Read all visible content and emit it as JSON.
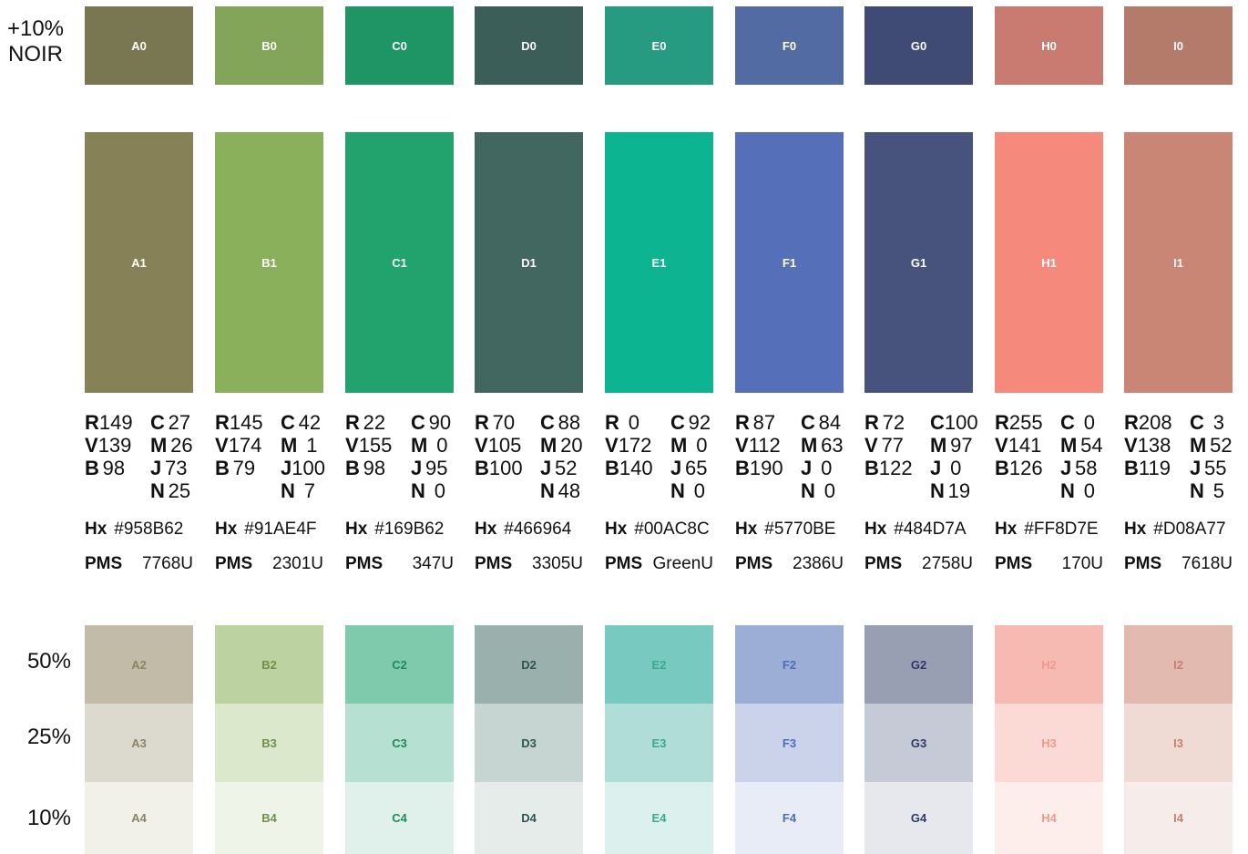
{
  "row_labels": {
    "noir_line1": "+10%",
    "noir_line2": "NOIR",
    "tint50": "50%",
    "tint25": "25%",
    "tint10": "10%"
  },
  "spec_keys": {
    "r": "R",
    "v": "V",
    "b": "B",
    "c": "C",
    "m": "M",
    "j": "J",
    "n": "N",
    "hx": "Hx",
    "pms": "PMS"
  },
  "columns": [
    {
      "labels": [
        "A0",
        "A1",
        "A2",
        "A3",
        "A4"
      ],
      "colors": [
        "#797752",
        "#878158",
        "#c2bba7",
        "#dcdacf",
        "#f1f0e9"
      ],
      "tint_text": "#8a8463",
      "rgb": {
        "r": "149",
        "v": "139",
        "b": "98"
      },
      "cmjn": {
        "c": "27",
        "m": "26",
        "j": "73",
        "n": "25"
      },
      "hex": "#958B62",
      "pms": "7768U"
    },
    {
      "labels": [
        "B0",
        "B1",
        "B2",
        "B3",
        "B4"
      ],
      "colors": [
        "#82a559",
        "#8bb05c",
        "#bcd2a0",
        "#dce8cb",
        "#eef4e7"
      ],
      "tint_text": "#6f8f49",
      "rgb": {
        "r": "145",
        "v": "174",
        "b": "79"
      },
      "cmjn": {
        "c": "42",
        "m": "1",
        "j": "100",
        "n": "7"
      },
      "hex": "#91AE4F",
      "pms": "2301U"
    },
    {
      "labels": [
        "C0",
        "C1",
        "C2",
        "C3",
        "C4"
      ],
      "colors": [
        "#1f9464",
        "#22a26d",
        "#7fcaad",
        "#b6e0d2",
        "#dff1ea"
      ],
      "tint_text": "#1f8a5c",
      "rgb": {
        "r": "22",
        "v": "155",
        "b": "98"
      },
      "cmjn": {
        "c": "90",
        "m": "0",
        "j": "95",
        "n": "0"
      },
      "hex": "#169B62",
      "pms": "347U"
    },
    {
      "labels": [
        "D0",
        "D1",
        "D2",
        "D3",
        "D4"
      ],
      "colors": [
        "#3b5e59",
        "#426761",
        "#99b0ac",
        "#c6d5d2",
        "#e6ecea"
      ],
      "tint_text": "#2f554f",
      "rgb": {
        "r": "70",
        "v": "105",
        "b": "100"
      },
      "cmjn": {
        "c": "88",
        "m": "20",
        "j": "52",
        "n": "48"
      },
      "hex": "#466964",
      "pms": "3305U"
    },
    {
      "labels": [
        "E0",
        "E1",
        "E2",
        "E3",
        "E4"
      ],
      "colors": [
        "#279b81",
        "#0db492",
        "#78c9bf",
        "#b1ddd8",
        "#dcf0ee"
      ],
      "tint_text": "#3aa98d",
      "rgb": {
        "r": "0",
        "v": "172",
        "b": "140"
      },
      "cmjn": {
        "c": "92",
        "m": "0",
        "j": "65",
        "n": "0"
      },
      "hex": "#00AC8C",
      "pms": "GreenU"
    },
    {
      "labels": [
        "F0",
        "F1",
        "F2",
        "F3",
        "F4"
      ],
      "colors": [
        "#526ba2",
        "#5570b9",
        "#9caed6",
        "#cad3ea",
        "#e8ecf6"
      ],
      "tint_text": "#4f6cb6",
      "rgb": {
        "r": "87",
        "v": "112",
        "b": "190"
      },
      "cmjn": {
        "c": "84",
        "m": "63",
        "j": "0",
        "n": "0"
      },
      "hex": "#5770BE",
      "pms": "2386U"
    },
    {
      "labels": [
        "G0",
        "G1",
        "G2",
        "G3",
        "G4"
      ],
      "colors": [
        "#404b75",
        "#47537c",
        "#989fb3",
        "#c6cad6",
        "#e6e8ee"
      ],
      "tint_text": "#2f3a64",
      "rgb": {
        "r": "72",
        "v": "77",
        "b": "122"
      },
      "cmjn": {
        "c": "100",
        "m": "97",
        "j": "0",
        "n": "19"
      },
      "hex": "#484D7A",
      "pms": "2758U"
    },
    {
      "labels": [
        "H0",
        "H1",
        "H2",
        "H3",
        "H4"
      ],
      "colors": [
        "#c97a71",
        "#f4897c",
        "#f7bab3",
        "#fbdad6",
        "#fdeeec"
      ],
      "tint_text": "#ee9a90",
      "rgb": {
        "r": "255",
        "v": "141",
        "b": "126"
      },
      "cmjn": {
        "c": "0",
        "m": "54",
        "j": "58",
        "n": "0"
      },
      "hex": "#FF8D7E",
      "pms": "170U"
    },
    {
      "labels": [
        "I0",
        "I1",
        "I2",
        "I3",
        "I4"
      ],
      "colors": [
        "#b47b6b",
        "#c98674",
        "#e3bab0",
        "#efdbd4",
        "#f6ecea"
      ],
      "tint_text": "#c18272",
      "rgb": {
        "r": "208",
        "v": "138",
        "b": "119"
      },
      "cmjn": {
        "c": "3",
        "m": "52",
        "j": "55",
        "n": "5"
      },
      "hex": "#D08A77",
      "pms": "7618U"
    }
  ]
}
